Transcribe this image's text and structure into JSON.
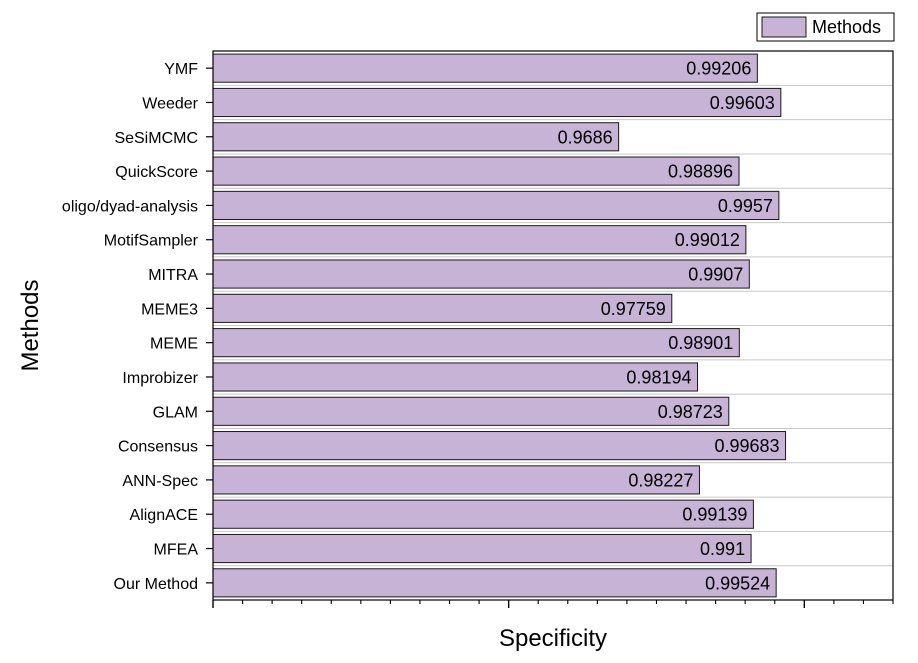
{
  "chart_data": {
    "type": "bar",
    "orientation": "horizontal",
    "xlabel": "Specificity",
    "ylabel": "Methods",
    "legend": {
      "label": "Methods",
      "placement": "top-right"
    },
    "xlim": [
      0.9,
      1.015
    ],
    "grid": "horizontal",
    "colors": {
      "bar": "#c6b3d6",
      "bar_edge": "#1a1a1a",
      "axis": "#000000",
      "grid": "#c8c8c8"
    },
    "categories": [
      "YMF",
      "Weeder",
      "SeSiMCMC",
      "QuickScore",
      "oligo/dyad-analysis",
      "MotifSampler",
      "MITRA",
      "MEME3",
      "MEME",
      "Improbizer",
      "GLAM",
      "Consensus",
      "ANN-Spec",
      "AlignACE",
      "MFEA",
      "Our Method"
    ],
    "values": [
      0.99206,
      0.99603,
      0.9686,
      0.98896,
      0.9957,
      0.99012,
      0.9907,
      0.97759,
      0.98901,
      0.98194,
      0.98723,
      0.99683,
      0.98227,
      0.99139,
      0.991,
      0.99524
    ],
    "value_labels": [
      "0.99206",
      "0.99603",
      "0.9686",
      "0.98896",
      "0.9957",
      "0.99012",
      "0.9907",
      "0.97759",
      "0.98901",
      "0.98194",
      "0.98723",
      "0.99683",
      "0.98227",
      "0.99139",
      "0.991",
      "0.99524"
    ]
  }
}
